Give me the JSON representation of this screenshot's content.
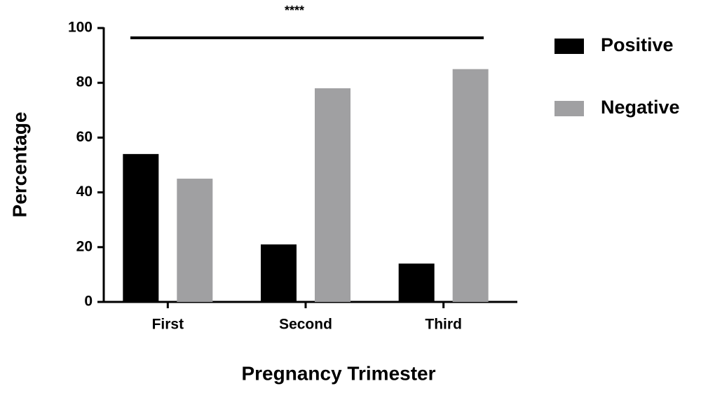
{
  "chart_data": {
    "type": "bar",
    "x_label": "Pregnancy Trimester",
    "y_label": "Percentage",
    "annotation": "****",
    "categories": [
      "First",
      "Second",
      "Third"
    ],
    "series": [
      {
        "name": "Positive",
        "color": "#000000",
        "values": [
          54,
          21,
          14
        ]
      },
      {
        "name": "Negative",
        "color": "#a0a0a2",
        "values": [
          45,
          78,
          85
        ]
      }
    ],
    "ylim": [
      0,
      100
    ],
    "yticks": [
      0,
      20,
      40,
      60,
      80,
      100
    ],
    "grid": false,
    "legend": "right"
  }
}
